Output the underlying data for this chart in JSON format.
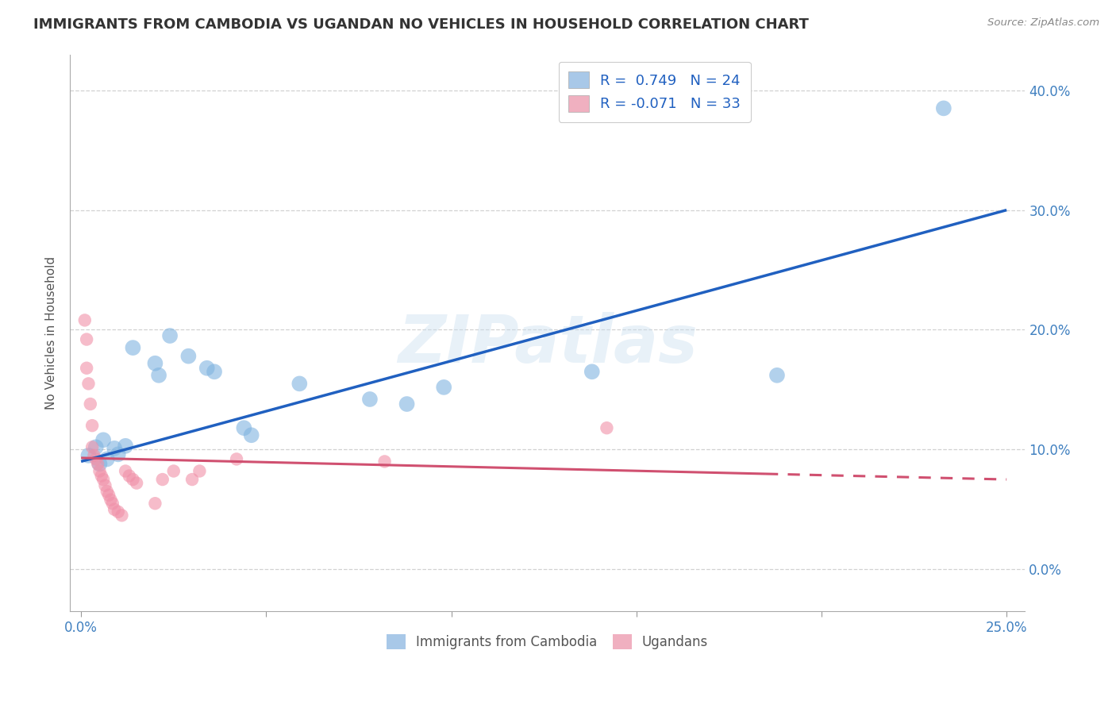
{
  "title": "IMMIGRANTS FROM CAMBODIA VS UGANDAN NO VEHICLES IN HOUSEHOLD CORRELATION CHART",
  "source": "Source: ZipAtlas.com",
  "xlabel_ticks": [
    "0.0%",
    "",
    "",
    "",
    "",
    "25.0%"
  ],
  "xlabel_vals": [
    0.0,
    5.0,
    10.0,
    15.0,
    20.0,
    25.0
  ],
  "ylabel_ticks": [
    "0.0%",
    "10.0%",
    "20.0%",
    "30.0%",
    "40.0%"
  ],
  "ylabel_vals": [
    0.0,
    10.0,
    20.0,
    30.0,
    40.0
  ],
  "xlim": [
    -0.3,
    25.5
  ],
  "ylim": [
    -3.5,
    43.0
  ],
  "watermark": "ZIPatlas",
  "blue_scatter": [
    [
      0.2,
      9.5
    ],
    [
      0.4,
      10.2
    ],
    [
      0.5,
      8.8
    ],
    [
      0.6,
      10.8
    ],
    [
      0.7,
      9.2
    ],
    [
      0.9,
      10.1
    ],
    [
      1.0,
      9.6
    ],
    [
      1.2,
      10.3
    ],
    [
      1.4,
      18.5
    ],
    [
      2.0,
      17.2
    ],
    [
      2.1,
      16.2
    ],
    [
      2.4,
      19.5
    ],
    [
      2.9,
      17.8
    ],
    [
      3.4,
      16.8
    ],
    [
      3.6,
      16.5
    ],
    [
      4.4,
      11.8
    ],
    [
      4.6,
      11.2
    ],
    [
      5.9,
      15.5
    ],
    [
      7.8,
      14.2
    ],
    [
      8.8,
      13.8
    ],
    [
      9.8,
      15.2
    ],
    [
      13.8,
      16.5
    ],
    [
      18.8,
      16.2
    ],
    [
      23.3,
      38.5
    ]
  ],
  "pink_scatter": [
    [
      0.1,
      20.8
    ],
    [
      0.15,
      16.8
    ],
    [
      0.2,
      15.5
    ],
    [
      0.25,
      13.8
    ],
    [
      0.3,
      12.0
    ],
    [
      0.3,
      10.2
    ],
    [
      0.35,
      9.5
    ],
    [
      0.4,
      9.2
    ],
    [
      0.45,
      8.8
    ],
    [
      0.5,
      8.2
    ],
    [
      0.55,
      7.8
    ],
    [
      0.6,
      7.5
    ],
    [
      0.65,
      7.0
    ],
    [
      0.7,
      6.5
    ],
    [
      0.75,
      6.2
    ],
    [
      0.8,
      5.8
    ],
    [
      0.85,
      5.5
    ],
    [
      0.9,
      5.0
    ],
    [
      1.0,
      4.8
    ],
    [
      1.1,
      4.5
    ],
    [
      1.2,
      8.2
    ],
    [
      1.3,
      7.8
    ],
    [
      1.4,
      7.5
    ],
    [
      1.5,
      7.2
    ],
    [
      2.0,
      5.5
    ],
    [
      2.2,
      7.5
    ],
    [
      2.5,
      8.2
    ],
    [
      3.0,
      7.5
    ],
    [
      3.2,
      8.2
    ],
    [
      4.2,
      9.2
    ],
    [
      8.2,
      9.0
    ],
    [
      14.2,
      11.8
    ],
    [
      0.15,
      19.2
    ]
  ],
  "blue_line_x": [
    0.0,
    25.0
  ],
  "blue_line_y": [
    9.0,
    30.0
  ],
  "pink_line_x": [
    0.0,
    25.0
  ],
  "pink_line_y": [
    9.3,
    7.5
  ],
  "pink_line_dashed_start": 18.5,
  "scatter_size_blue": 200,
  "scatter_size_pink": 140,
  "blue_scatter_color": "#7fb3e0",
  "pink_scatter_color": "#f090a8",
  "blue_line_color": "#2060c0",
  "pink_line_color": "#d05070",
  "grid_color": "#cccccc",
  "bg_color": "#ffffff",
  "title_fontsize": 13,
  "axis_tick_color_x": "#4080c0",
  "axis_tick_color_y": "#4080c0",
  "ylabel": "No Vehicles in Household",
  "legend_R_blue": "0.749",
  "legend_N_blue": "24",
  "legend_R_pink": "-0.071",
  "legend_N_pink": "33",
  "legend_color_blue": "#a8c8e8",
  "legend_color_pink": "#f0b0c0"
}
